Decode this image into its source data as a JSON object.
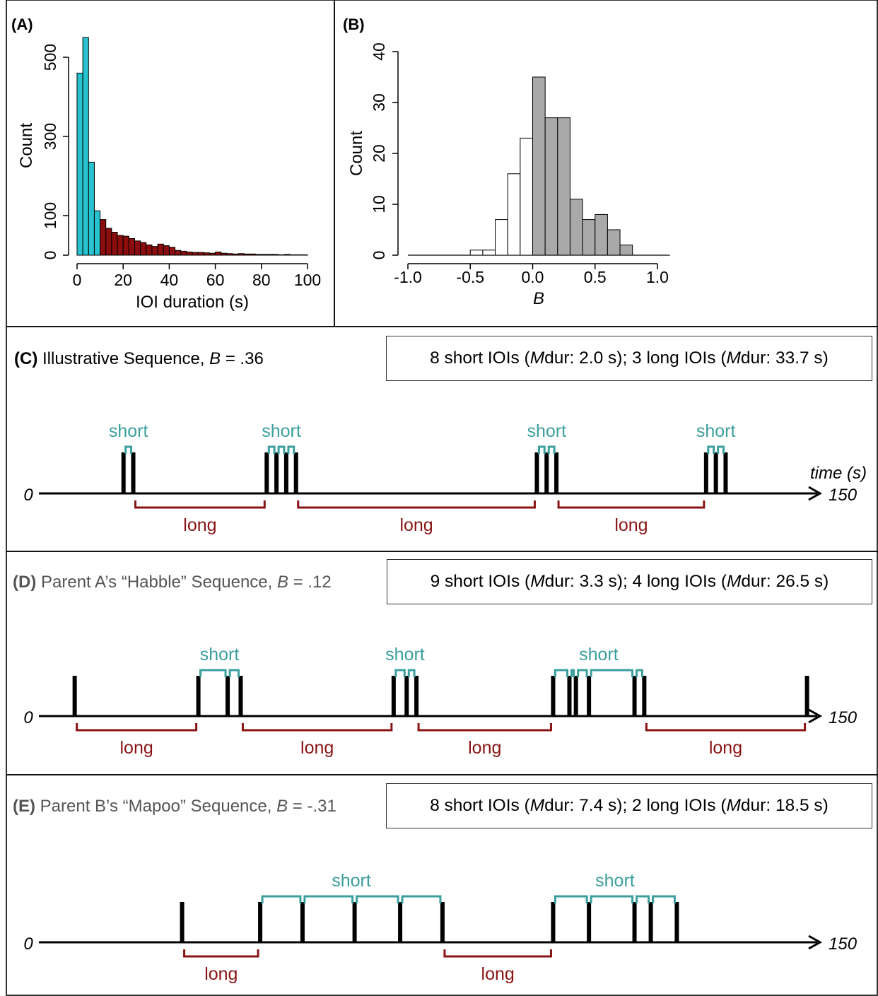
{
  "chart_data": [
    {
      "panel": "(A)",
      "type": "bar",
      "subtype": "histogram",
      "xlabel": "IOI duration (s)",
      "ylabel": "Count",
      "xlim": [
        0,
        100
      ],
      "ylim": [
        0,
        560
      ],
      "x_ticks": [
        0,
        20,
        40,
        60,
        80,
        100
      ],
      "y_ticks": [
        0,
        100,
        300,
        500
      ],
      "bin_width": 2.5,
      "bin_start": 0,
      "colors": {
        "short": "#29c3cf",
        "long": "#8b0d0d"
      },
      "short_bin_count": 4,
      "values": [
        460,
        550,
        235,
        112,
        90,
        68,
        58,
        50,
        48,
        42,
        36,
        32,
        26,
        22,
        28,
        24,
        20,
        12,
        10,
        8,
        7,
        7,
        6,
        5,
        8,
        5,
        4,
        3,
        4,
        3,
        3,
        2,
        2,
        2,
        2,
        1,
        2,
        1,
        1,
        1
      ]
    },
    {
      "panel": "(B)",
      "type": "bar",
      "subtype": "histogram",
      "xlabel": "B",
      "ylabel": "Count",
      "xlim": [
        -1.0,
        1.0
      ],
      "ylim": [
        0,
        40
      ],
      "x_ticks": [
        "-1.0",
        "-0.5",
        "0.0",
        "0.5",
        "1.0"
      ],
      "y_ticks": [
        0,
        10,
        20,
        30,
        40
      ],
      "bin_width": 0.1,
      "bin_start": -0.5,
      "colors": {
        "negative": "#ffffff",
        "positive": "#a9a9a9"
      },
      "values": [
        1,
        1,
        7,
        16,
        23,
        35,
        27,
        27,
        11,
        7,
        8,
        5,
        2
      ]
    }
  ],
  "panels": {
    "C": {
      "label": "(C)",
      "title": "Illustrative Sequence, ",
      "b_symbol": "B",
      "b_value": " = .36",
      "summary_a": "8 short IOIs (",
      "summary_m1": "M",
      "summary_b": " dur: 2.0 s); 3 long IOIs (",
      "summary_m2": "M",
      "summary_c": " dur: 33.7 s)",
      "time_label": "time (s)",
      "origin": "0",
      "end": "150",
      "short_label": "short",
      "long_label": "long",
      "events": [
        26,
        29,
        70,
        73,
        76,
        79,
        153,
        156,
        159,
        205,
        208,
        211
      ],
      "short_groups": [
        {
          "events": [
            26,
            29
          ],
          "label": true
        },
        {
          "events": [
            70,
            73,
            76,
            79
          ],
          "label": true
        },
        {
          "events": [
            153,
            156,
            159
          ],
          "label": true
        },
        {
          "events": [
            205,
            208,
            211
          ],
          "label": true
        }
      ],
      "long_spans": [
        [
          29,
          70
        ],
        [
          79,
          153
        ],
        [
          159,
          205
        ]
      ]
    },
    "D": {
      "label": "(D)",
      "title": "Parent A’s “Habble” Sequence, ",
      "b_symbol": "B",
      "b_value": " = .12",
      "summary_a": "9 short IOIs (",
      "summary_m1": "M",
      "summary_b": " dur: 3.3 s); 4 long IOIs (",
      "summary_m2": "M",
      "summary_c": " dur: 26.5 s)",
      "origin": "0",
      "end": "150",
      "short_label": "short",
      "long_label": "long",
      "events": [
        11,
        49,
        58,
        62,
        109,
        113,
        116,
        158,
        163,
        165,
        169,
        183,
        186,
        236
      ],
      "short_groups": [
        {
          "events": [
            49,
            58,
            62
          ],
          "label": true
        },
        {
          "events": [
            109,
            113,
            116
          ],
          "label": true
        },
        {
          "events": [
            158,
            163,
            165,
            169,
            183,
            186
          ],
          "label": true
        }
      ],
      "long_spans": [
        [
          11,
          49
        ],
        [
          62,
          109
        ],
        [
          116,
          158
        ],
        [
          186,
          236
        ]
      ]
    },
    "E": {
      "label": "(E)",
      "title": "Parent B’s “Mapoo” Sequence, ",
      "b_symbol": "B",
      "b_value": " = -.31",
      "summary_a": "8 short IOIs (",
      "summary_m1": "M",
      "summary_b": " dur: 7.4 s); 2 long IOIs (",
      "summary_m2": "M",
      "summary_c": " dur: 18.5 s)",
      "origin": "0",
      "end": "150",
      "short_label": "short",
      "long_label": "long",
      "events": [
        44,
        68,
        81,
        97,
        111,
        124,
        158,
        169,
        183,
        188,
        196
      ],
      "short_groups": [
        {
          "events": [
            68,
            81,
            97,
            111,
            124
          ],
          "label": true
        },
        {
          "events": [
            158,
            169,
            183,
            188,
            196
          ],
          "label": true
        }
      ],
      "long_spans": [
        [
          44,
          68
        ],
        [
          124,
          158
        ]
      ]
    }
  }
}
